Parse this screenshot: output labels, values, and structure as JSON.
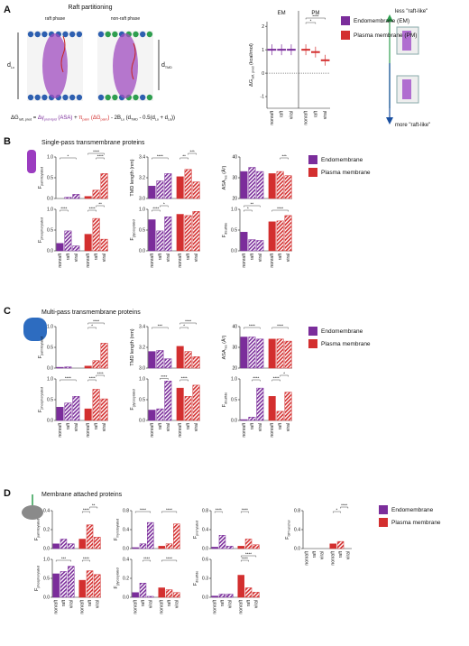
{
  "panels": [
    {
      "label": "A",
      "title": "Raft partitioning"
    },
    {
      "label": "B",
      "title": "Single-pass transmembrane proteins",
      "legend": [
        "Endomembrane",
        "Plasma membrane"
      ],
      "legend_colors": [
        "#7b2d9b",
        "#d32f2f"
      ]
    },
    {
      "label": "C",
      "title": "Multi-pass transmembrane proteins",
      "legend": [
        "Endomembrane",
        "Plasma membrane"
      ],
      "legend_colors": [
        "#7b2d9b",
        "#d32f2f"
      ]
    },
    {
      "label": "D",
      "title": "Membrane attached proteins",
      "legend": [
        "Endomembrane",
        "Plasma membrane"
      ],
      "legend_colors": [
        "#7b2d9b",
        "#d32f2f"
      ]
    }
  ],
  "diagram": {
    "raft": "raft phase",
    "nonraft": "non-raft phase",
    "dLo": [
      "d",
      "Lo"
    ],
    "dTMD": [
      "d",
      "TMD"
    ]
  },
  "equation": [
    "ΔG",
    "raft, pred",
    " = ",
    "Δγ",
    "prot-lipid",
    " (ASA)",
    " + ",
    "π",
    "palm",
    " (ΔG",
    "palm",
    ")",
    " - 2B",
    "Lo",
    " (d",
    "TMD",
    " - 0.5(d",
    "Lo",
    " + d",
    "Ld",
    "))"
  ],
  "chart_data": [
    {
      "type": "strip",
      "ylabel": [
        "ΔG",
        "raft, pred",
        " (kcal/mol)"
      ],
      "groups": [
        "EM",
        "PM"
      ],
      "categories": [
        "nonraft",
        "raft",
        "viral"
      ],
      "ylim": [
        -1.5,
        2.2
      ],
      "yticks": [
        -1,
        0,
        1,
        2
      ],
      "annotations": [
        "less \"raft-like\"",
        "more \"raft-like\""
      ],
      "series": [
        {
          "name": "Endomembrane (EM)",
          "color": "#7b2d9b",
          "values": [
            1.0,
            1.0,
            1.0
          ]
        },
        {
          "name": "Plasma membrane (PM)",
          "color": "#d32f2f",
          "values": [
            1.0,
            0.9,
            0.55
          ]
        }
      ],
      "brackets": [
        {
          "series": 1,
          "from": 0,
          "to": 1,
          "label": "*"
        },
        {
          "series": 1,
          "from": 0,
          "to": 2,
          "label": "****"
        }
      ]
    },
    {
      "type": "bar",
      "ylabel": [
        "F",
        "palmitoylated"
      ],
      "ylim": [
        0,
        1
      ],
      "yticks": [
        {
          "value": 0,
          "label": "0.0"
        },
        0.5,
        {
          "value": 1,
          "label": "1.0"
        }
      ],
      "series": [
        {
          "color": "#7b2d9b",
          "values": [
            0.0,
            0.03,
            0.1
          ]
        },
        {
          "color": "#d32f2f",
          "values": [
            0.05,
            0.2,
            0.6
          ]
        }
      ],
      "brackets": [
        {
          "series": 0,
          "from": 0,
          "to": 2,
          "label": "*"
        },
        {
          "series": 1,
          "from": 1,
          "to": 2,
          "label": "****"
        },
        {
          "series": 1,
          "from": 0,
          "to": 2,
          "label": "****"
        }
      ]
    },
    {
      "type": "bar",
      "ylabel": [
        "TMD length (nm)"
      ],
      "ylim": [
        3,
        3.4
      ],
      "yticks": [
        {
          "value": 3,
          "label": "3.0"
        },
        3.2,
        3.4
      ],
      "series": [
        {
          "color": "#7b2d9b",
          "values": [
            3.12,
            3.17,
            3.24
          ]
        },
        {
          "color": "#d32f2f",
          "values": [
            3.21,
            3.28,
            3.16
          ]
        }
      ],
      "brackets": [
        {
          "series": 0,
          "from": 0,
          "to": 2,
          "label": "****"
        },
        {
          "series": 1,
          "from": 0,
          "to": 1,
          "label": "**"
        },
        {
          "series": 1,
          "from": 1,
          "to": 2,
          "label": "***"
        }
      ]
    },
    {
      "type": "bar",
      "ylabel": [
        "ASA",
        "res",
        " (Å²)"
      ],
      "ylim": [
        20,
        40
      ],
      "yticks": [
        20,
        30,
        40
      ],
      "series": [
        {
          "color": "#7b2d9b",
          "values": [
            33,
            35,
            33
          ]
        },
        {
          "color": "#d32f2f",
          "values": [
            32,
            33,
            31
          ]
        }
      ],
      "brackets": [
        {
          "series": 1,
          "from": 1,
          "to": 2,
          "label": "***"
        }
      ]
    },
    {
      "type": "bar",
      "ylabel": [
        "F",
        "phosphorylated"
      ],
      "categories": [
        "nonraft",
        "raft",
        "viral"
      ],
      "ylim": [
        0,
        1
      ],
      "yticks": [
        {
          "value": 0,
          "label": "0.0"
        },
        0.5,
        {
          "value": 1,
          "label": "1.0"
        }
      ],
      "series": [
        {
          "color": "#7b2d9b",
          "values": [
            0.18,
            0.48,
            0.12
          ]
        },
        {
          "color": "#d32f2f",
          "values": [
            0.4,
            0.78,
            0.28
          ]
        }
      ],
      "brackets": [
        {
          "series": 0,
          "from": 0,
          "to": 1,
          "label": "****"
        },
        {
          "series": 1,
          "from": 0,
          "to": 1,
          "label": "****"
        },
        {
          "series": 1,
          "from": 1,
          "to": 2,
          "label": "**"
        }
      ]
    },
    {
      "type": "bar",
      "ylabel": [
        "F",
        "glycosylated"
      ],
      "categories": [
        "nonraft",
        "raft",
        "viral"
      ],
      "ylim": [
        0,
        1
      ],
      "yticks": [
        {
          "value": 0,
          "label": "0.0"
        },
        0.5,
        {
          "value": 1,
          "label": "1.0"
        }
      ],
      "series": [
        {
          "color": "#7b2d9b",
          "values": [
            0.75,
            0.48,
            0.82
          ]
        },
        {
          "color": "#d32f2f",
          "values": [
            0.88,
            0.85,
            0.95
          ]
        }
      ],
      "brackets": [
        {
          "series": 0,
          "from": 0,
          "to": 1,
          "label": "****"
        },
        {
          "series": 0,
          "from": 1,
          "to": 2,
          "label": "*"
        }
      ]
    },
    {
      "type": "bar",
      "ylabel": [
        "F",
        "disulfide"
      ],
      "categories": [
        "nonraft",
        "raft",
        "viral"
      ],
      "ylim": [
        0,
        1
      ],
      "yticks": [
        {
          "value": 0,
          "label": "0.0"
        },
        0.5,
        {
          "value": 1,
          "label": "1.0"
        }
      ],
      "series": [
        {
          "color": "#7b2d9b",
          "values": [
            0.45,
            0.27,
            0.25
          ]
        },
        {
          "color": "#d32f2f",
          "values": [
            0.7,
            0.72,
            0.85
          ]
        }
      ],
      "brackets": [
        {
          "series": 0,
          "from": 0,
          "to": 1,
          "label": "*"
        },
        {
          "series": 0,
          "from": 0,
          "to": 2,
          "label": "**"
        },
        {
          "series": 1,
          "from": 0,
          "to": 2,
          "label": "****"
        }
      ]
    },
    {
      "type": "bar",
      "ylabel": [
        "F",
        "palmitoylated"
      ],
      "ylim": [
        0,
        1
      ],
      "yticks": [
        {
          "value": 0,
          "label": "0.0"
        },
        0.5,
        {
          "value": 1,
          "label": "1.0"
        }
      ],
      "series": [
        {
          "color": "#7b2d9b",
          "values": [
            0.02,
            0.03,
            0.0
          ]
        },
        {
          "color": "#d32f2f",
          "values": [
            0.05,
            0.18,
            0.6
          ]
        }
      ],
      "brackets": [
        {
          "series": 1,
          "from": 0,
          "to": 1,
          "label": "*"
        },
        {
          "series": 1,
          "from": 0,
          "to": 2,
          "label": "****"
        }
      ]
    },
    {
      "type": "bar",
      "ylabel": [
        "TMD length (nm)"
      ],
      "ylim": [
        3,
        3.4
      ],
      "yticks": [
        {
          "value": 3,
          "label": "3.0"
        },
        3.2,
        3.4
      ],
      "series": [
        {
          "color": "#7b2d9b",
          "values": [
            3.16,
            3.17,
            3.09
          ]
        },
        {
          "color": "#d32f2f",
          "values": [
            3.21,
            3.16,
            3.11
          ]
        }
      ],
      "brackets": [
        {
          "series": 0,
          "from": 0,
          "to": 2,
          "label": "***"
        },
        {
          "series": 1,
          "from": 0,
          "to": 1,
          "label": "*"
        },
        {
          "series": 1,
          "from": 0,
          "to": 2,
          "label": "****"
        }
      ]
    },
    {
      "type": "bar",
      "ylabel": [
        "ASA",
        "res",
        " (Å²)"
      ],
      "ylim": [
        20,
        40
      ],
      "yticks": [
        20,
        30,
        40
      ],
      "series": [
        {
          "color": "#7b2d9b",
          "values": [
            35,
            35,
            34
          ]
        },
        {
          "color": "#d32f2f",
          "values": [
            34,
            34,
            33
          ]
        }
      ],
      "brackets": [
        {
          "series": 0,
          "from": 0,
          "to": 2,
          "label": "****"
        },
        {
          "series": 1,
          "from": 0,
          "to": 2,
          "label": "****"
        }
      ]
    },
    {
      "type": "bar",
      "ylabel": [
        "F",
        "phosphorylated"
      ],
      "categories": [
        "nonraft",
        "raft",
        "viral"
      ],
      "ylim": [
        0,
        1
      ],
      "yticks": [
        {
          "value": 0,
          "label": "0.0"
        },
        0.5,
        {
          "value": 1,
          "label": "1.0"
        }
      ],
      "series": [
        {
          "color": "#7b2d9b",
          "values": [
            0.32,
            0.42,
            0.58
          ]
        },
        {
          "color": "#d32f2f",
          "values": [
            0.28,
            0.75,
            0.52
          ]
        }
      ],
      "brackets": [
        {
          "series": 0,
          "from": 0,
          "to": 2,
          "label": "****"
        },
        {
          "series": 1,
          "from": 0,
          "to": 1,
          "label": "****"
        },
        {
          "series": 1,
          "from": 1,
          "to": 2,
          "label": "****"
        }
      ]
    },
    {
      "type": "bar",
      "ylabel": [
        "F",
        "glycosylated"
      ],
      "categories": [
        "nonraft",
        "raft",
        "viral"
      ],
      "ylim": [
        0,
        1
      ],
      "yticks": [
        {
          "value": 0,
          "label": "0.0"
        },
        0.5,
        {
          "value": 1,
          "label": "1.0"
        }
      ],
      "series": [
        {
          "color": "#7b2d9b",
          "values": [
            0.25,
            0.28,
            0.95
          ]
        },
        {
          "color": "#d32f2f",
          "values": [
            0.78,
            0.58,
            0.85
          ]
        }
      ],
      "brackets": [
        {
          "series": 0,
          "from": 1,
          "to": 2,
          "label": "****"
        },
        {
          "series": 1,
          "from": 0,
          "to": 1,
          "label": "****"
        }
      ]
    },
    {
      "type": "bar",
      "ylabel": [
        "F",
        "disulfide"
      ],
      "categories": [
        "nonraft",
        "raft",
        "viral"
      ],
      "ylim": [
        0,
        1
      ],
      "yticks": [
        {
          "value": 0,
          "label": "0.0"
        },
        0.5,
        {
          "value": 1,
          "label": "1.0"
        }
      ],
      "series": [
        {
          "color": "#7b2d9b",
          "values": [
            0.02,
            0.08,
            0.78
          ]
        },
        {
          "color": "#d32f2f",
          "values": [
            0.58,
            0.22,
            0.68
          ]
        }
      ],
      "brackets": [
        {
          "series": 0,
          "from": 1,
          "to": 2,
          "label": "****"
        },
        {
          "series": 1,
          "from": 0,
          "to": 1,
          "label": "****"
        },
        {
          "series": 1,
          "from": 1,
          "to": 2,
          "label": "*"
        }
      ]
    },
    {
      "type": "bar",
      "ylabel": [
        "F",
        "palmitoylated"
      ],
      "ylim": [
        0,
        0.4
      ],
      "yticks": [
        {
          "value": 0,
          "label": "0.0"
        },
        0.2,
        0.4
      ],
      "series": [
        {
          "color": "#7b2d9b",
          "values": [
            0.05,
            0.1,
            0.05
          ]
        },
        {
          "color": "#d32f2f",
          "values": [
            0.1,
            0.25,
            0.12
          ]
        }
      ],
      "brackets": [
        {
          "series": 1,
          "from": 0,
          "to": 1,
          "label": "****"
        },
        {
          "series": 1,
          "from": 1,
          "to": 2,
          "label": "**"
        }
      ]
    },
    {
      "type": "bar",
      "ylabel": [
        "F",
        "myristoylated"
      ],
      "ylim": [
        0,
        0.8
      ],
      "yticks": [
        {
          "value": 0,
          "label": "0.0"
        },
        0.4,
        0.8
      ],
      "series": [
        {
          "color": "#7b2d9b",
          "values": [
            0.02,
            0.1,
            0.55
          ]
        },
        {
          "color": "#d32f2f",
          "values": [
            0.05,
            0.1,
            0.52
          ]
        }
      ],
      "brackets": [
        {
          "series": 0,
          "from": 0,
          "to": 2,
          "label": "****"
        },
        {
          "series": 1,
          "from": 0,
          "to": 2,
          "label": "****"
        }
      ]
    },
    {
      "type": "bar",
      "ylabel": [
        "F",
        "prenylated"
      ],
      "ylim": [
        0,
        0.8
      ],
      "yticks": [
        {
          "value": 0,
          "label": "0.0"
        },
        0.4,
        0.8
      ],
      "series": [
        {
          "color": "#7b2d9b",
          "values": [
            0.03,
            0.28,
            0.05
          ]
        },
        {
          "color": "#d32f2f",
          "values": [
            0.05,
            0.2,
            0.08
          ]
        }
      ],
      "brackets": [
        {
          "series": 0,
          "from": 0,
          "to": 1,
          "label": "****"
        },
        {
          "series": 1,
          "from": 0,
          "to": 1,
          "label": "****"
        }
      ]
    },
    {
      "type": "bar",
      "ylabel": [
        "F",
        "GPI-anchor"
      ],
      "categories": [
        "nonraft",
        "raft",
        "viral"
      ],
      "ylim": [
        0,
        0.8
      ],
      "yticks": [
        {
          "value": 0,
          "label": "0.0"
        },
        0.4,
        0.8
      ],
      "series": [
        {
          "color": "#7b2d9b",
          "values": [
            0,
            0,
            0
          ]
        },
        {
          "color": "#d32f2f",
          "values": [
            0.1,
            0.15,
            0.0
          ]
        }
      ],
      "brackets": [
        {
          "series": 1,
          "from": 0,
          "to": 1,
          "label": "*"
        },
        {
          "series": 1,
          "from": 1,
          "to": 2,
          "label": "****"
        }
      ]
    },
    {
      "type": "bar",
      "ylabel": [
        "F",
        "phosphorylated"
      ],
      "categories": [
        "nonraft",
        "raft",
        "viral"
      ],
      "ylim": [
        0,
        1
      ],
      "yticks": [
        {
          "value": 0,
          "label": "0.0"
        },
        0.5,
        {
          "value": 1,
          "label": "1.0"
        }
      ],
      "series": [
        {
          "color": "#7b2d9b",
          "values": [
            0.62,
            0.68,
            0.82
          ]
        },
        {
          "color": "#d32f2f",
          "values": [
            0.45,
            0.7,
            0.6
          ]
        }
      ],
      "brackets": [
        {
          "series": 0,
          "from": 0,
          "to": 2,
          "label": "***"
        },
        {
          "series": 1,
          "from": 0,
          "to": 1,
          "label": "****"
        }
      ]
    },
    {
      "type": "bar",
      "ylabel": [
        "F",
        "glycosylated"
      ],
      "categories": [
        "nonraft",
        "raft",
        "viral"
      ],
      "ylim": [
        0,
        0.4
      ],
      "yticks": [
        {
          "value": 0,
          "label": "0.0"
        },
        0.2,
        0.4
      ],
      "series": [
        {
          "color": "#7b2d9b",
          "values": [
            0.05,
            0.15,
            0.01
          ]
        },
        {
          "color": "#d32f2f",
          "values": [
            0.1,
            0.08,
            0.05
          ]
        }
      ],
      "brackets": [
        {
          "series": 0,
          "from": 1,
          "to": 2,
          "label": "****"
        },
        {
          "series": 1,
          "from": 0,
          "to": 2,
          "label": "****"
        }
      ]
    },
    {
      "type": "bar",
      "ylabel": [
        "F",
        "disulfide"
      ],
      "categories": [
        "nonraft",
        "raft",
        "viral"
      ],
      "ylim": [
        0,
        0.6
      ],
      "yticks": [
        {
          "value": 0,
          "label": "0.0"
        },
        0.3,
        0.6
      ],
      "series": [
        {
          "color": "#7b2d9b",
          "values": [
            0.02,
            0.05,
            0.05
          ]
        },
        {
          "color": "#d32f2f",
          "values": [
            0.35,
            0.15,
            0.08
          ]
        }
      ],
      "brackets": [
        {
          "series": 1,
          "from": 0,
          "to": 1,
          "label": "****"
        },
        {
          "series": 1,
          "from": 0,
          "to": 2,
          "label": "****"
        }
      ]
    }
  ]
}
